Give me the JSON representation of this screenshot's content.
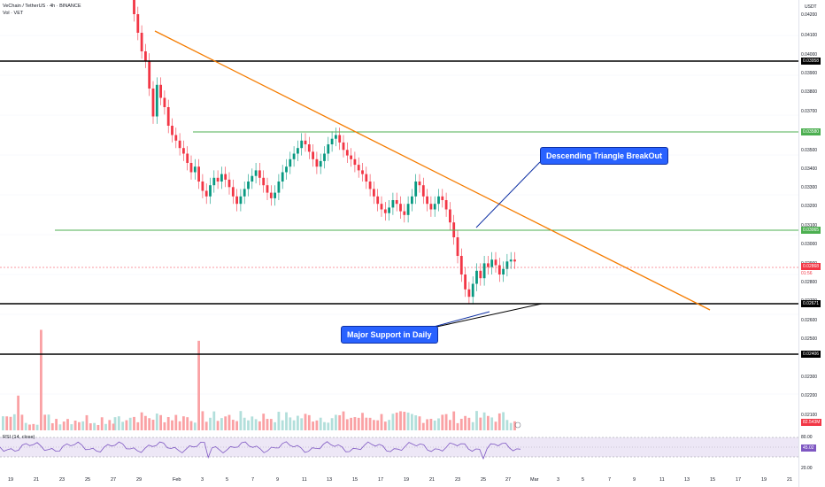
{
  "header": {
    "symbol_line": "VeChain / TetherUS · 4h · BINANCE",
    "volume_line": "Vol · VET"
  },
  "axis": {
    "currency": "USDT",
    "price_labels": [
      "0.04200",
      "0.04100",
      "0.04000",
      "0.03900",
      "0.03800",
      "0.03700",
      "0.03500",
      "0.03400",
      "0.03300",
      "0.03200",
      "0.03100",
      "0.03000",
      "0.02900",
      "0.02800",
      "0.02700",
      "0.02600",
      "0.02500",
      "0.02300",
      "0.02200",
      "0.02100"
    ],
    "tags": {
      "resistance_top": "0.03958",
      "green_upper": "0.03580",
      "green_lower": "0.03065",
      "last_price": "0.02868",
      "countdown": "01:56",
      "support": "0.02671",
      "lower_support": "0.02406",
      "volume": "82.543M",
      "rsi": "45.02"
    },
    "rsi_labels": [
      "80.00",
      "20.00"
    ]
  },
  "x_labels": [
    "19",
    "21",
    "23",
    "25",
    "27",
    "29",
    "Feb",
    "3",
    "5",
    "7",
    "9",
    "11",
    "13",
    "15",
    "17",
    "19",
    "21",
    "23",
    "25",
    "27",
    "Mar",
    "3",
    "5",
    "7",
    "9",
    "11",
    "13",
    "15",
    "17",
    "19",
    "21"
  ],
  "annotations": {
    "breakout": "Descending Triangle BreakOut",
    "support": "Major Support in Daily"
  },
  "rsi": {
    "title": "RSI (14, close)"
  },
  "colors": {
    "up": "#089981",
    "down": "#f23645",
    "trendline": "#f57c00",
    "green_level": "#4caf50",
    "black_level": "#000000",
    "callout": "#2962ff",
    "rsi_line": "#7e57c2",
    "rsi_band": "#ede7f6"
  },
  "chart_data": {
    "type": "candlestick",
    "title": "VeChain / TetherUS · 4h · BINANCE",
    "levels": [
      0.03958,
      0.0358,
      0.03065,
      0.02671,
      0.02406
    ],
    "trendline": {
      "from_price": 0.041,
      "to_price": 0.0265
    },
    "last_price": 0.02868,
    "close_series": [
      0.0433,
      0.0436,
      0.0437,
      0.0434,
      0.0436,
      0.042,
      0.041,
      0.04,
      0.0395,
      0.038,
      0.0365,
      0.0382,
      0.0375,
      0.037,
      0.036,
      0.0355,
      0.0352,
      0.0348,
      0.0345,
      0.034,
      0.0335,
      0.0338,
      0.033,
      0.0325,
      0.0322,
      0.0328,
      0.0332,
      0.033,
      0.0334,
      0.0331,
      0.0327,
      0.0322,
      0.0318,
      0.0322,
      0.0326,
      0.033,
      0.0333,
      0.0336,
      0.0332,
      0.0328,
      0.0324,
      0.0321,
      0.0324,
      0.033,
      0.0335,
      0.0338,
      0.0342,
      0.0345,
      0.0348,
      0.0352,
      0.035,
      0.0346,
      0.0342,
      0.0338,
      0.0341,
      0.0345,
      0.035,
      0.0353,
      0.0355,
      0.0351,
      0.0347,
      0.0344,
      0.0342,
      0.0339,
      0.0336,
      0.0334,
      0.033,
      0.0326,
      0.0322,
      0.0318,
      0.0315,
      0.0313,
      0.0316,
      0.032,
      0.0318,
      0.0314,
      0.0312,
      0.0318,
      0.0322,
      0.033,
      0.0328,
      0.0322,
      0.0318,
      0.0315,
      0.0318,
      0.0322,
      0.032,
      0.0315,
      0.0308,
      0.03,
      0.029,
      0.028,
      0.0272,
      0.0268,
      0.0275,
      0.0282,
      0.0278,
      0.0286,
      0.0284,
      0.0288,
      0.0285,
      0.028,
      0.0283,
      0.0287,
      0.0288,
      0.0287
    ]
  }
}
